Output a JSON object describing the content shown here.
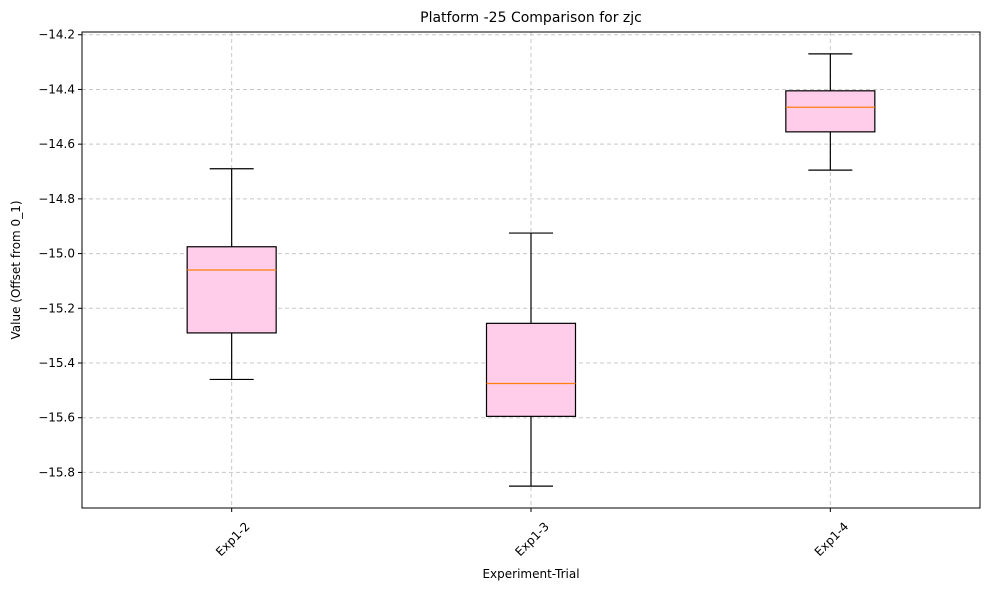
{
  "chart_data": {
    "type": "box",
    "title": "Platform -25 Comparison for zjc",
    "xlabel": "Experiment-Trial",
    "ylabel": "Value (Offset from 0_1)",
    "categories": [
      "Exp1-2",
      "Exp1-3",
      "Exp1-4"
    ],
    "boxes": [
      {
        "label": "Exp1-2",
        "whisker_low": -15.46,
        "q1": -15.29,
        "median": -15.06,
        "q3": -14.975,
        "whisker_high": -14.69
      },
      {
        "label": "Exp1-3",
        "whisker_low": -15.85,
        "q1": -15.595,
        "median": -15.475,
        "q3": -15.255,
        "whisker_high": -14.925
      },
      {
        "label": "Exp1-4",
        "whisker_low": -14.695,
        "q1": -14.555,
        "median": -14.465,
        "q3": -14.405,
        "whisker_high": -14.27
      }
    ],
    "ylim": [
      -15.93,
      -14.19
    ],
    "yticks": [
      -15.8,
      -15.6,
      -15.4,
      -15.2,
      -15.0,
      -14.8,
      -14.6,
      -14.4,
      -14.2
    ],
    "ytick_labels": [
      "−15.8",
      "−15.6",
      "−15.4",
      "−15.2",
      "−15.0",
      "−14.8",
      "−14.6",
      "−14.4",
      "−14.2"
    ],
    "grid": true,
    "colors": {
      "box_fill": "#ffccea",
      "box_edge": "#000000",
      "median": "#ff7f0e",
      "grid": "#c8c8c8"
    }
  }
}
